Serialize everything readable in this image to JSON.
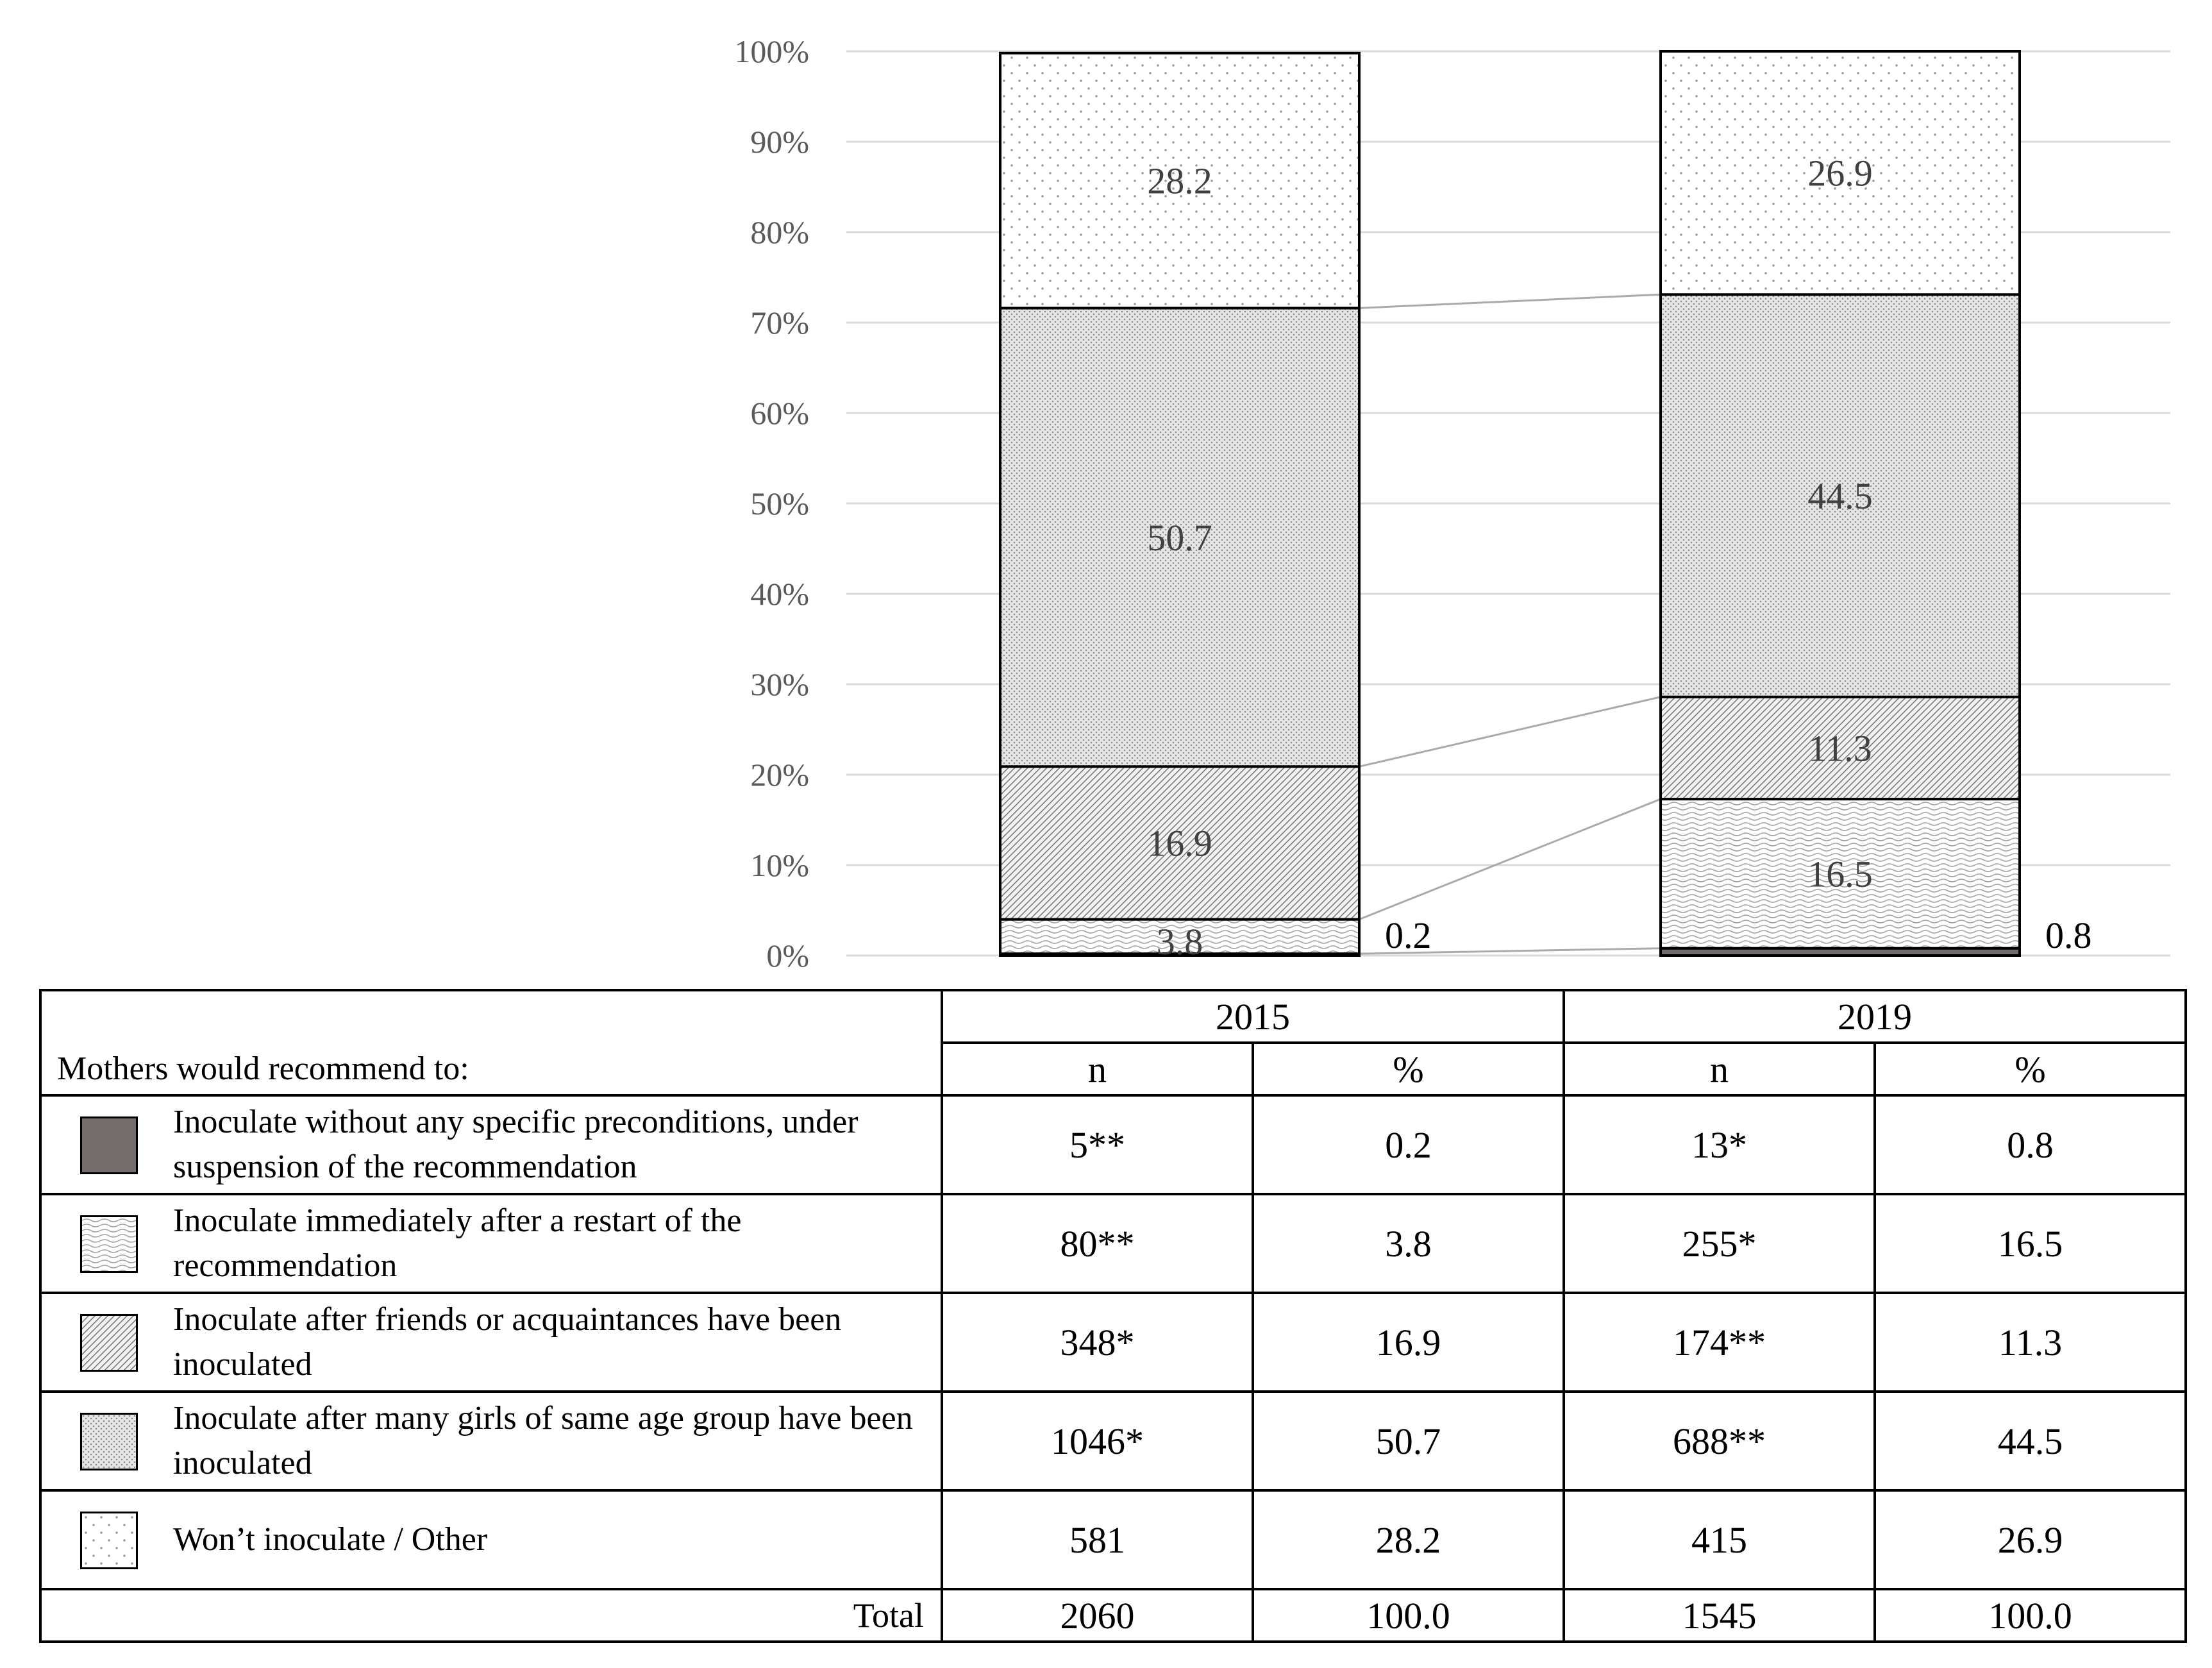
{
  "chart_data": {
    "type": "bar",
    "stacked": true,
    "categories": [
      "2015",
      "2019"
    ],
    "y_ticks": [
      "0%",
      "10%",
      "20%",
      "30%",
      "40%",
      "50%",
      "60%",
      "70%",
      "80%",
      "90%",
      "100%"
    ],
    "ylim": [
      0,
      100
    ],
    "grid": true,
    "series": [
      {
        "name": "Inoculate without any specific preconditions, under suspension of the recommendation",
        "values": [
          0.2,
          0.8
        ],
        "labels": [
          "0.2",
          "0.8"
        ]
      },
      {
        "name": "Inoculate immediately after a restart of the recommendation",
        "values": [
          3.8,
          16.5
        ],
        "labels": [
          "3.8",
          "16.5"
        ]
      },
      {
        "name": "Inoculate after friends or acquaintances have been inoculated",
        "values": [
          16.9,
          11.3
        ],
        "labels": [
          "16.9",
          "11.3"
        ]
      },
      {
        "name": "Inoculate after many girls of same age group have been inoculated",
        "values": [
          50.7,
          44.5
        ],
        "labels": [
          "50.7",
          "44.5"
        ]
      },
      {
        "name": "Won’t inoculate / Other",
        "values": [
          28.2,
          26.9
        ],
        "labels": [
          "28.2",
          "26.9"
        ]
      }
    ]
  },
  "table": {
    "row_header": "Mothers would recommend to:",
    "years": [
      "2015",
      "2019"
    ],
    "col_n": "n",
    "col_pct": "%",
    "rows": [
      {
        "label": "Inoculate without any specific preconditions, under suspension of the recommendation",
        "n2015": "5**",
        "p2015": "0.2",
        "n2019": "13*",
        "p2019": "0.8"
      },
      {
        "label": "Inoculate immediately after a restart of the recommendation",
        "n2015": "80**",
        "p2015": "3.8",
        "n2019": "255*",
        "p2019": "16.5"
      },
      {
        "label": "Inoculate after friends or acquaintances have been inoculated",
        "n2015": "348*",
        "p2015": "16.9",
        "n2019": "174**",
        "p2019": "11.3"
      },
      {
        "label": "Inoculate after many girls of same age group have been inoculated",
        "n2015": "1046*",
        "p2015": "50.7",
        "n2019": "688**",
        "p2019": "44.5"
      },
      {
        "label": "Won’t inoculate / Other",
        "n2015": "581",
        "p2015": "28.2",
        "n2019": "415",
        "p2019": "26.9"
      }
    ],
    "total": {
      "label": "Total",
      "n2015": "2060",
      "p2015": "100.0",
      "n2019": "1545",
      "p2019": "100.0"
    }
  },
  "colors": {
    "gridline": "#d9d9d9",
    "connector": "#aaaaaa",
    "outline": "#000000",
    "solid_fill": "#736c6c"
  }
}
